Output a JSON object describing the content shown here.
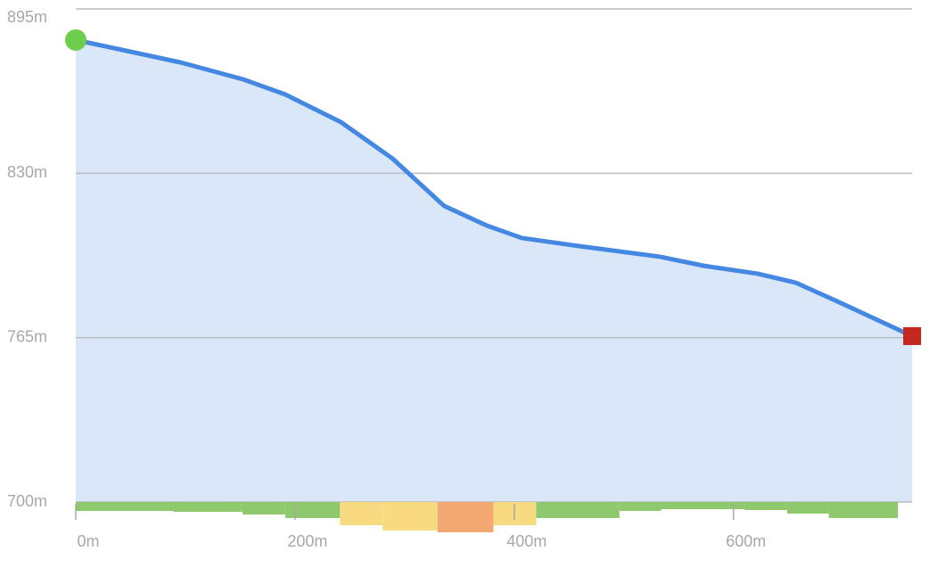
{
  "chart_data": {
    "type": "area",
    "x": [
      0,
      96,
      153,
      191,
      242,
      289,
      336,
      375,
      407,
      459,
      533,
      573,
      622,
      657,
      695,
      763
    ],
    "series": [
      {
        "color": "#4488e4",
        "fill": "#dae7f8",
        "values": [
          882.7,
          873.8,
          867.1,
          861.2,
          850.2,
          835.8,
          817.1,
          809.3,
          804.4,
          801.2,
          797,
          793.4,
          790.3,
          786.7,
          779.3,
          765.6
        ]
      }
    ],
    "start_color": "#6cce4a",
    "end_color": "#c4281f",
    "grade": {
      "bins": [
        0,
        89,
        152,
        191,
        241,
        280,
        330,
        381,
        420,
        496,
        534,
        610,
        649,
        687,
        750
      ],
      "values": [
        10,
        11,
        14,
        18,
        26,
        32,
        34,
        26,
        18,
        10,
        8,
        9,
        13,
        18
      ],
      "colors": [
        "#8fc96e",
        "#8fc96e",
        "#8fc96e",
        "#8fc96e",
        "#f8da80",
        "#f8da80",
        "#f2a870",
        "#f8da80",
        "#8fc96e",
        "#8fc96e",
        "#8fc96e",
        "#8fc96e",
        "#8fc96e",
        "#8fc96e"
      ]
    },
    "xlim": [
      0,
      763
    ],
    "ylim": [
      700,
      895
    ],
    "xticks": [
      {
        "value": 0,
        "label": "0m"
      },
      {
        "value": 200,
        "label": "200m"
      },
      {
        "value": 400,
        "label": "400m"
      },
      {
        "value": 600,
        "label": "600m"
      }
    ],
    "yticks": [
      {
        "value": 700,
        "label": "700m"
      },
      {
        "value": 765,
        "label": "765m"
      },
      {
        "value": 830,
        "label": "830m"
      },
      {
        "value": 895,
        "label": "895m"
      }
    ],
    "grid": true
  }
}
